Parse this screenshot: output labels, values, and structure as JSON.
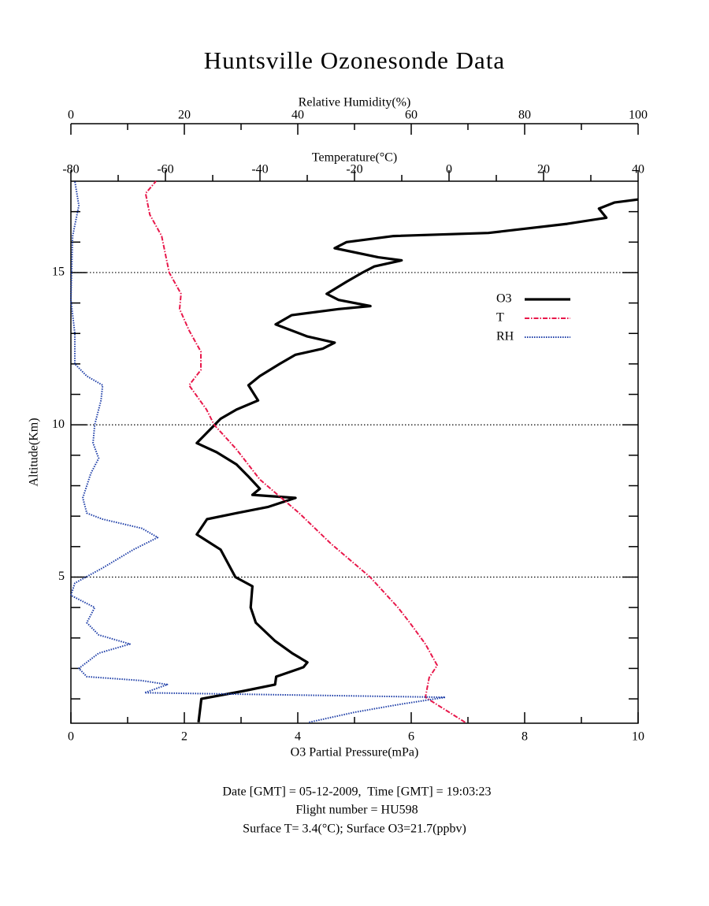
{
  "chart_data": {
    "type": "line",
    "title": "Huntsville Ozonesonde Data",
    "xlabel": "O3 Partial Pressure(mPa)",
    "x_rh_label": "Relative Humidity(%)",
    "x_temp_label": "Temperature(°C)",
    "ylabel": "Altitude(Km)",
    "xlim": [
      0,
      10
    ],
    "xticks": [
      0,
      2,
      4,
      6,
      8,
      10
    ],
    "xminor_ticks": [
      1,
      3,
      5,
      7,
      9
    ],
    "x_rh_lim": [
      0,
      100
    ],
    "x_rh_ticks": [
      0,
      20,
      40,
      60,
      80,
      100
    ],
    "x_rh_minor_ticks": [
      10,
      30,
      50,
      70,
      90
    ],
    "x_temp_lim": [
      -80,
      40
    ],
    "x_temp_ticks": [
      -80,
      -60,
      -40,
      -20,
      0,
      20,
      40
    ],
    "x_temp_minor_ticks": [
      -70,
      -50,
      -30,
      -10,
      10,
      30
    ],
    "ylim": [
      0.2,
      18
    ],
    "yticks": [
      5,
      10,
      15
    ],
    "yminor_ticks": [
      1,
      2,
      3,
      4,
      6,
      7,
      8,
      9,
      11,
      12,
      13,
      14,
      16,
      17
    ],
    "grid": true,
    "series": [
      {
        "name": "O3",
        "color": "#000000",
        "axis": "x",
        "style": "solid",
        "altitude": [
          0.23,
          1.0,
          1.26,
          1.47,
          1.73,
          2.04,
          2.2,
          2.5,
          2.9,
          3.5,
          4.0,
          4.7,
          5.0,
          5.9,
          6.4,
          6.9,
          7.1,
          7.3,
          7.6,
          7.7,
          7.9,
          8.3,
          8.7,
          9.1,
          9.4,
          9.8,
          10.2,
          10.5,
          10.8,
          11.3,
          11.6,
          12.0,
          12.3,
          12.5,
          12.7,
          12.9,
          13.3,
          13.6,
          13.8,
          13.9,
          14.1,
          14.3,
          14.7,
          15.0,
          15.2,
          15.4,
          15.5,
          15.8,
          16.0,
          16.2,
          16.3,
          16.6,
          16.8,
          17.1,
          17.3,
          17.4
        ],
        "values": [
          2.25,
          2.3,
          3.05,
          3.6,
          3.62,
          4.1,
          4.17,
          3.9,
          3.6,
          3.26,
          3.17,
          3.2,
          2.9,
          2.64,
          2.22,
          2.4,
          2.92,
          3.47,
          3.96,
          3.2,
          3.33,
          3.13,
          2.92,
          2.57,
          2.22,
          2.43,
          2.64,
          2.92,
          3.3,
          3.13,
          3.33,
          3.68,
          3.96,
          4.44,
          4.65,
          4.17,
          3.61,
          3.89,
          4.72,
          5.28,
          4.72,
          4.51,
          4.86,
          5.14,
          5.35,
          5.83,
          5.42,
          4.65,
          4.86,
          5.69,
          7.36,
          8.75,
          9.44,
          9.31,
          9.58,
          10
        ]
      },
      {
        "name": "T",
        "color": "#e8174a",
        "axis": "x_temp",
        "style": "dashdot",
        "altitude": [
          0.23,
          1.05,
          1.7,
          2.1,
          2.8,
          3.5,
          4.0,
          5.0,
          6.1,
          7.1,
          8.2,
          9.2,
          10.0,
          10.5,
          11.3,
          11.8,
          12.4,
          13.1,
          13.8,
          14.3,
          15.0,
          15.6,
          16.2,
          16.9,
          17.6,
          18.0
        ],
        "values": [
          3.4,
          -5,
          -4.2,
          -2.5,
          -5,
          -8.3,
          -10.8,
          -16.7,
          -25,
          -31.7,
          -40,
          -45,
          -49.7,
          -51.3,
          -55,
          -52.5,
          -52.5,
          -55,
          -57,
          -56.7,
          -59.2,
          -60,
          -60.8,
          -63.3,
          -64.2,
          -62
        ]
      },
      {
        "name": "RH",
        "color": "#1f3fa8",
        "axis": "x_rh",
        "style": "dotted",
        "altitude": [
          0.23,
          0.56,
          0.82,
          1.05,
          1.2,
          1.47,
          1.6,
          1.73,
          2.0,
          2.5,
          2.8,
          3.1,
          3.5,
          4.0,
          4.4,
          4.8,
          5.3,
          5.9,
          6.3,
          6.6,
          6.9,
          7.1,
          7.6,
          8.4,
          8.9,
          9.4,
          10.0,
          10.8,
          11.3,
          11.6,
          12.0,
          13.0,
          14.1,
          16.2,
          17.2,
          18.0
        ],
        "values": [
          42,
          50,
          58,
          66,
          13,
          17,
          12.5,
          2.8,
          1.4,
          4.9,
          10.4,
          4.9,
          2.8,
          4.2,
          0,
          0.7,
          5.6,
          11,
          15.3,
          12.5,
          5.6,
          2.8,
          2.1,
          3.5,
          4.9,
          3.9,
          4.2,
          5.3,
          5.6,
          2.8,
          0.7,
          0.7,
          0,
          0.3,
          1.4,
          0.7
        ]
      }
    ],
    "legend": "upper right",
    "footer": [
      "Date [GMT] = 05-12-2009,  Time [GMT] = 19:03:23",
      "Flight number = HU598",
      "Surface T= 3.4(°C); Surface O3=21.7(ppbv)"
    ]
  }
}
